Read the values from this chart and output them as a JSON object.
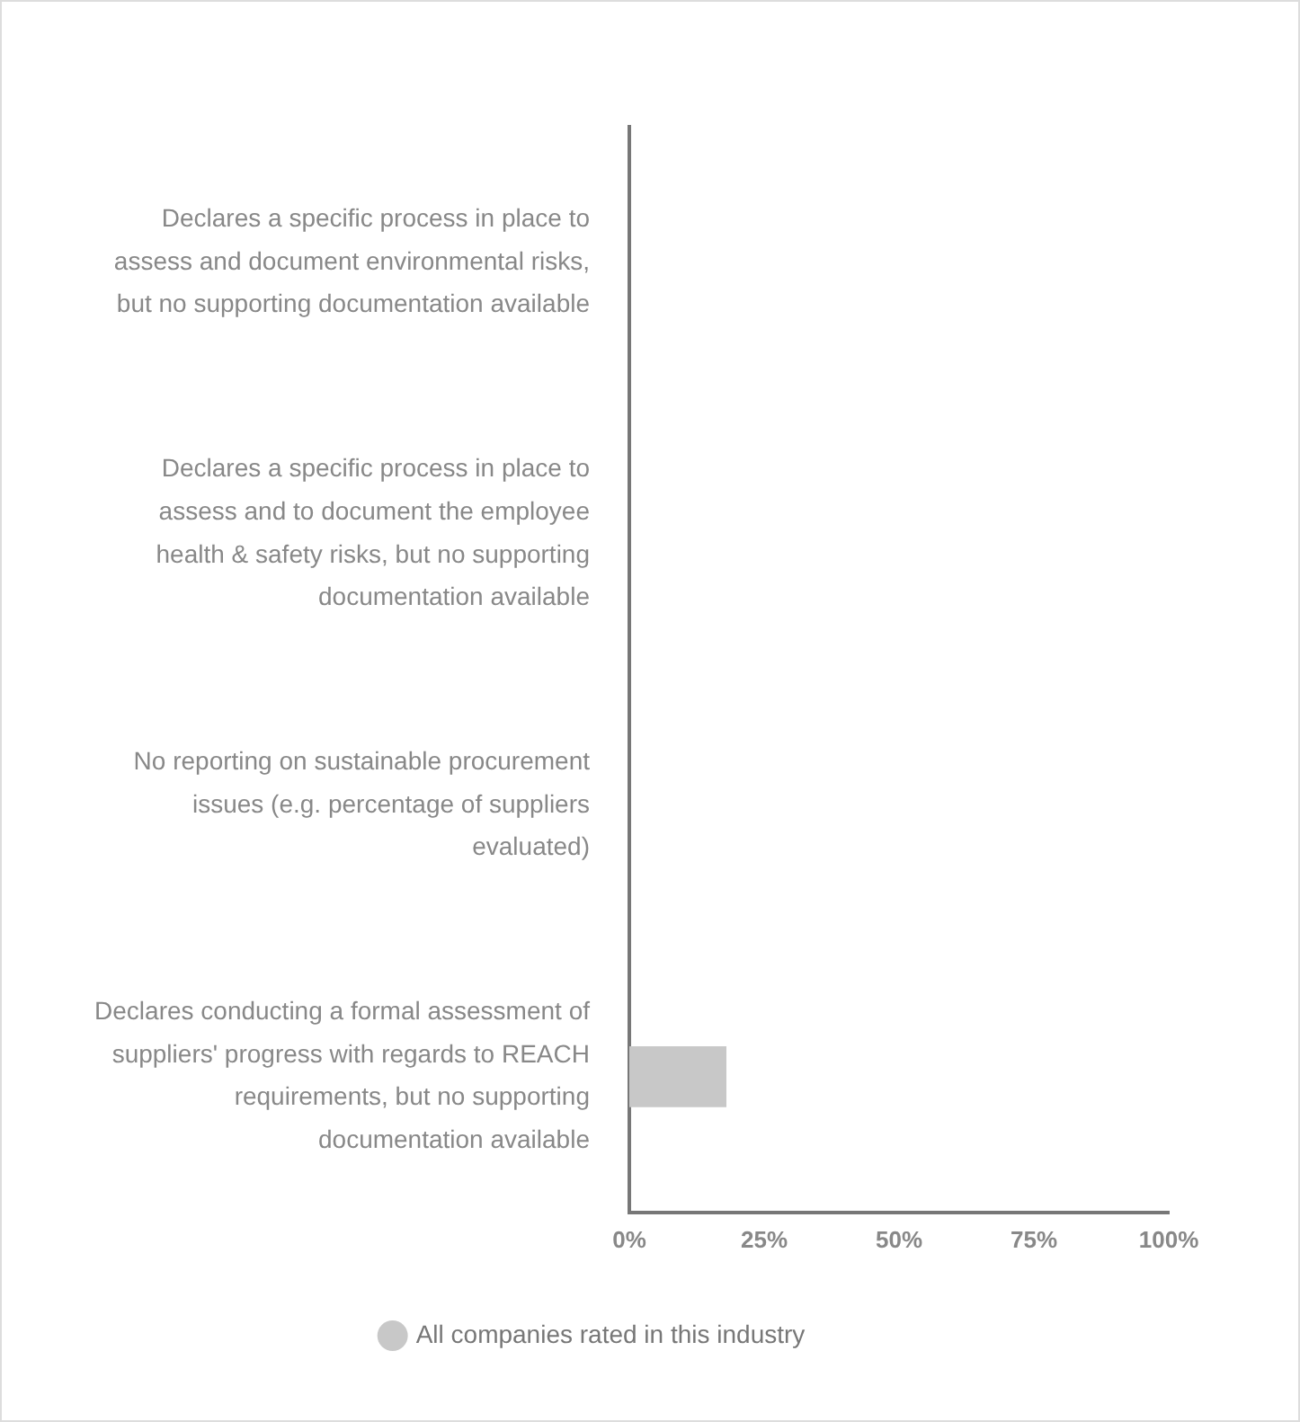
{
  "chart_data": {
    "type": "bar",
    "orientation": "horizontal",
    "categories": [
      "Declares a specific process in place to assess and document environmental risks, but no supporting documentation available",
      "Declares a specific process in place to assess and to document the employee health & safety risks, but no supporting documentation available",
      "No reporting on sustainable procurement issues (e.g. percentage of suppliers evaluated)",
      "Declares conducting a formal assessment of suppliers' progress with regards to REACH requirements, but no supporting documentation available"
    ],
    "series": [
      {
        "name": "All companies rated in this industry",
        "color": "#c8c8c8",
        "values": [
          0,
          0,
          0,
          18
        ]
      }
    ],
    "xlim": [
      0,
      100
    ],
    "xticks": [
      {
        "value": 0,
        "label": "0%"
      },
      {
        "value": 25,
        "label": "25%"
      },
      {
        "value": 50,
        "label": "50%"
      },
      {
        "value": 75,
        "label": "75%"
      },
      {
        "value": 100,
        "label": "100%"
      }
    ],
    "grid": false,
    "legend": "bottom",
    "marker": "circle"
  }
}
